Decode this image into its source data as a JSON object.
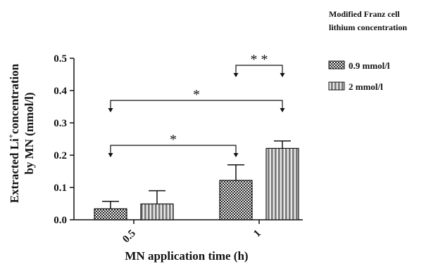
{
  "chart_data": {
    "type": "bar",
    "categories": [
      "0.5",
      "1"
    ],
    "series": [
      {
        "name": "0.9 mmol/l",
        "values": [
          0.034,
          0.122
        ],
        "errors": [
          0.023,
          0.048
        ],
        "pattern": "checker"
      },
      {
        "name": "2 mmol/l",
        "values": [
          0.049,
          0.221
        ],
        "errors": [
          0.041,
          0.023
        ],
        "pattern": "vertical-stripes"
      }
    ],
    "xlabel": "MN application time (h)",
    "ylabel_line1": "Extracted Li",
    "ylabel_sup": "+",
    "ylabel_line1_suffix": "concentration",
    "ylabel_line2": "by MN (mmol/l)",
    "ylim": [
      0,
      0.5
    ],
    "yticks": [
      "0.0",
      "0.1",
      "0.2",
      "0.3",
      "0.4",
      "0.5"
    ],
    "legend_title_line1": "Modified Franz cell",
    "legend_title_line2": "lithium concentration",
    "legend_position": "top-right",
    "significance": [
      {
        "from_series": 0,
        "from_cat": 0,
        "to_series": 0,
        "to_cat": 1,
        "label": "*"
      },
      {
        "from_series": 0,
        "from_cat": 0,
        "to_series": 1,
        "to_cat": 1,
        "label": "*"
      },
      {
        "from_series": 0,
        "from_cat": 1,
        "to_series": 1,
        "to_cat": 1,
        "label": "* *"
      }
    ],
    "grid": false
  }
}
